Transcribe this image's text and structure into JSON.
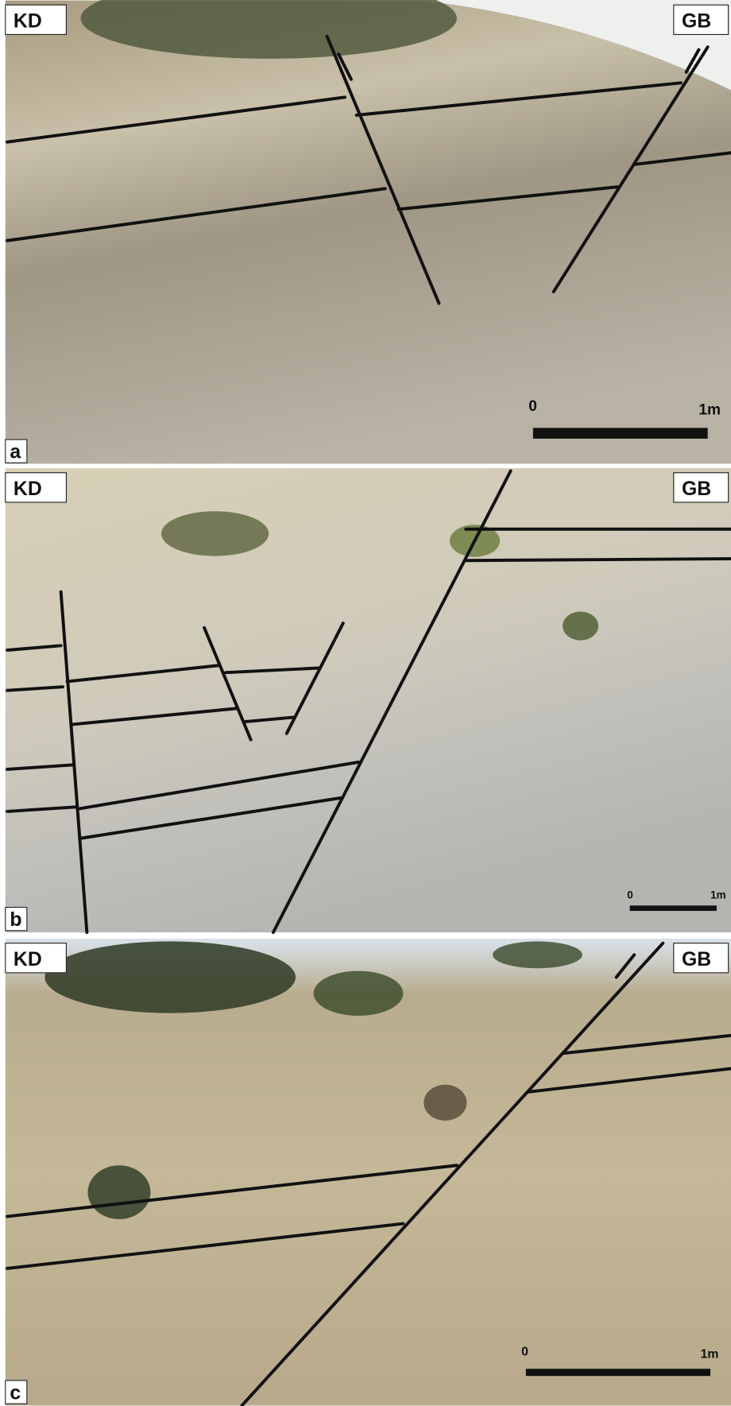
{
  "panels": [
    {
      "label": "a",
      "left": "KD",
      "right": "GB",
      "scale": {
        "start": "0",
        "end": "1m"
      }
    },
    {
      "label": "b",
      "left": "KD",
      "right": "GB",
      "scale": {
        "start": "0",
        "end": "1m"
      }
    },
    {
      "label": "c",
      "left": "KD",
      "right": "GB",
      "scale": {
        "start": "0",
        "end": "1m"
      }
    }
  ]
}
